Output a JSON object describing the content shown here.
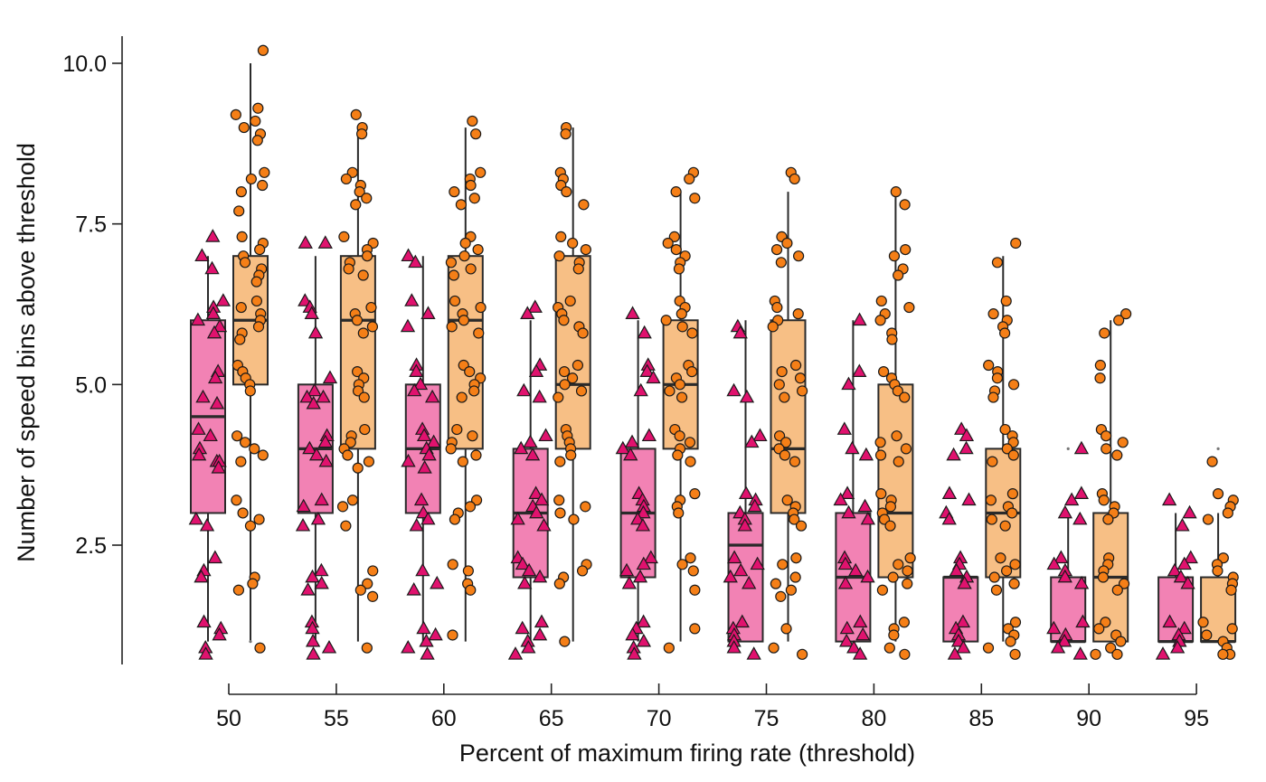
{
  "chart_data": {
    "type": "box",
    "xlabel": "Percent of maximum firing rate (threshold)",
    "ylabel": "Number of speed bins above threshold",
    "categories": [
      "50",
      "55",
      "60",
      "65",
      "70",
      "75",
      "80",
      "85",
      "90",
      "95"
    ],
    "yticks": [
      "2.5",
      "5.0",
      "7.5",
      "10.0"
    ],
    "ylim": [
      0.5,
      10.4
    ],
    "legend": "none",
    "series": [
      {
        "marker": "triangle",
        "color": "#f282b4",
        "point_color": "#e0126e",
        "boxes": [
          {
            "q1": 3,
            "median": 4.5,
            "q3": 6,
            "whisker_low": 1,
            "whisker_high": 7
          },
          {
            "q1": 3,
            "median": 4,
            "q3": 5,
            "whisker_low": 1,
            "whisker_high": 7
          },
          {
            "q1": 3,
            "median": 4,
            "q3": 5,
            "whisker_low": 1,
            "whisker_high": 7
          },
          {
            "q1": 2,
            "median": 3,
            "q3": 4,
            "whisker_low": 1,
            "whisker_high": 6
          },
          {
            "q1": 2,
            "median": 3,
            "q3": 4,
            "whisker_low": 1,
            "whisker_high": 6
          },
          {
            "q1": 1,
            "median": 2.5,
            "q3": 3,
            "whisker_low": 1,
            "whisker_high": 6
          },
          {
            "q1": 1,
            "median": 2,
            "q3": 3,
            "whisker_low": 1,
            "whisker_high": 6
          },
          {
            "q1": 1,
            "median": 2,
            "q3": 2,
            "whisker_low": 1,
            "whisker_high": 2
          },
          {
            "q1": 1,
            "median": 1,
            "q3": 2,
            "whisker_low": 1,
            "whisker_high": 3
          },
          {
            "q1": 1,
            "median": 1,
            "q3": 2,
            "whisker_low": 1,
            "whisker_high": 3
          }
        ],
        "points": [
          [
            7.3,
            7.0,
            6.8,
            6.3,
            6.2,
            6.1,
            6.0,
            5.9,
            5.8,
            5.2,
            5.1,
            4.8,
            4.7,
            4.3,
            4.2,
            4.0,
            3.9,
            3.8,
            3.8,
            3.7,
            2.9,
            2.8,
            2.3,
            2.1,
            2.0,
            1.3,
            1.2,
            1.1,
            0.9,
            0.8
          ],
          [
            7.2,
            7.2,
            6.3,
            6.2,
            6.1,
            5.8,
            5.1,
            4.9,
            4.8,
            4.8,
            4.7,
            4.2,
            4.1,
            4.0,
            3.9,
            3.8,
            3.2,
            3.1,
            2.9,
            2.8,
            2.1,
            2.0,
            1.9,
            1.8,
            1.3,
            1.2,
            1.0,
            0.9,
            0.8
          ],
          [
            7.0,
            6.9,
            6.3,
            6.1,
            5.9,
            5.3,
            5.2,
            5.0,
            4.9,
            4.8,
            4.3,
            4.2,
            4.1,
            4.0,
            3.9,
            3.8,
            3.7,
            3.2,
            3.0,
            2.9,
            2.8,
            2.1,
            1.9,
            1.8,
            1.2,
            1.1,
            1.0,
            0.9,
            0.8
          ],
          [
            6.2,
            6.1,
            5.3,
            5.2,
            4.9,
            4.8,
            4.2,
            4.1,
            4.0,
            3.9,
            3.3,
            3.2,
            3.1,
            3.0,
            2.9,
            2.8,
            2.3,
            2.2,
            2.1,
            2.0,
            1.9,
            1.3,
            1.2,
            1.1,
            1.0,
            0.9,
            0.8
          ],
          [
            6.1,
            5.8,
            5.3,
            5.2,
            5.1,
            4.9,
            4.2,
            4.1,
            4.0,
            3.9,
            3.3,
            3.2,
            3.1,
            3.0,
            2.9,
            2.8,
            2.3,
            2.2,
            2.1,
            2.0,
            1.9,
            1.3,
            1.2,
            1.1,
            1.0,
            0.9,
            0.8
          ],
          [
            5.9,
            5.8,
            4.9,
            4.8,
            4.2,
            4.1,
            3.3,
            3.2,
            3.1,
            3.0,
            2.9,
            2.8,
            2.3,
            2.2,
            2.1,
            2.0,
            1.9,
            1.3,
            1.2,
            1.1,
            1.0,
            0.9,
            0.8
          ],
          [
            6.0,
            5.2,
            5.0,
            4.3,
            4.0,
            3.9,
            3.3,
            3.2,
            3.1,
            3.0,
            2.9,
            2.3,
            2.2,
            2.1,
            2.0,
            1.9,
            1.3,
            1.2,
            1.1,
            1.0,
            0.9,
            0.8
          ],
          [
            4.3,
            4.2,
            4.0,
            3.9,
            3.3,
            3.2,
            3.0,
            2.9,
            2.3,
            2.2,
            2.1,
            2.0,
            1.9,
            1.3,
            1.2,
            1.1,
            1.0,
            0.9,
            0.8
          ],
          [
            4.0,
            3.3,
            3.2,
            3.0,
            2.9,
            2.3,
            2.2,
            2.1,
            2.0,
            1.9,
            1.3,
            1.2,
            1.1,
            1.0,
            0.9,
            0.8
          ],
          [
            3.2,
            3.0,
            2.8,
            2.3,
            2.2,
            2.1,
            2.0,
            1.9,
            1.3,
            1.2,
            1.1,
            1.0,
            0.9,
            0.8
          ]
        ]
      },
      {
        "marker": "circle",
        "color": "#f7bf85",
        "point_color": "#f57f17",
        "boxes": [
          {
            "q1": 5,
            "median": 6,
            "q3": 7,
            "whisker_low": 1,
            "whisker_high": 10
          },
          {
            "q1": 4,
            "median": 6,
            "q3": 7,
            "whisker_low": 1,
            "whisker_high": 9
          },
          {
            "q1": 4,
            "median": 6,
            "q3": 7,
            "whisker_low": 1,
            "whisker_high": 9
          },
          {
            "q1": 4,
            "median": 5,
            "q3": 7,
            "whisker_low": 1,
            "whisker_high": 9
          },
          {
            "q1": 4,
            "median": 5,
            "q3": 6,
            "whisker_low": 1,
            "whisker_high": 8
          },
          {
            "q1": 3,
            "median": 4,
            "q3": 6,
            "whisker_low": 1,
            "whisker_high": 8
          },
          {
            "q1": 2,
            "median": 3,
            "q3": 5,
            "whisker_low": 1,
            "whisker_high": 8
          },
          {
            "q1": 2,
            "median": 3,
            "q3": 4,
            "whisker_low": 1,
            "whisker_high": 7
          },
          {
            "q1": 1,
            "median": 2,
            "q3": 3,
            "whisker_low": 1,
            "whisker_high": 6
          },
          {
            "q1": 1,
            "median": 1,
            "q3": 2,
            "whisker_low": 1,
            "whisker_high": 3
          }
        ],
        "points": [
          [
            10.2,
            9.3,
            9.2,
            9.1,
            9.0,
            8.9,
            8.8,
            8.3,
            8.2,
            8.1,
            8.0,
            7.7,
            7.3,
            7.2,
            7.1,
            7.0,
            6.9,
            6.8,
            6.7,
            6.6,
            6.3,
            6.2,
            6.1,
            6.0,
            5.9,
            5.8,
            5.7,
            5.3,
            5.2,
            5.1,
            5.0,
            4.9,
            4.2,
            4.1,
            4.0,
            3.9,
            3.8,
            3.2,
            3.0,
            2.9,
            2.8,
            2.0,
            1.9,
            1.8,
            0.9
          ],
          [
            9.2,
            9.0,
            8.9,
            8.3,
            8.2,
            8.1,
            8.0,
            7.9,
            7.8,
            7.3,
            7.2,
            7.1,
            7.0,
            6.9,
            6.8,
            6.7,
            6.2,
            6.1,
            6.0,
            5.9,
            5.8,
            5.2,
            5.1,
            5.0,
            4.9,
            4.8,
            4.3,
            4.2,
            4.1,
            4.0,
            3.9,
            3.8,
            3.7,
            3.2,
            3.1,
            2.8,
            2.1,
            1.9,
            1.8,
            1.7,
            0.9
          ],
          [
            9.1,
            8.9,
            8.3,
            8.2,
            8.1,
            8.0,
            7.9,
            7.8,
            7.3,
            7.2,
            7.1,
            7.0,
            6.9,
            6.8,
            6.7,
            6.3,
            6.2,
            6.1,
            6.0,
            5.9,
            5.8,
            5.3,
            5.2,
            5.1,
            5.0,
            4.9,
            4.8,
            4.3,
            4.2,
            4.1,
            4.0,
            3.9,
            3.8,
            3.2,
            3.1,
            3.0,
            2.9,
            2.2,
            2.1,
            1.9,
            1.8,
            1.1
          ],
          [
            9.0,
            8.9,
            8.3,
            8.2,
            8.1,
            8.0,
            7.8,
            7.3,
            7.2,
            7.1,
            7.0,
            6.9,
            6.8,
            6.3,
            6.2,
            6.1,
            6.0,
            5.9,
            5.8,
            5.3,
            5.2,
            5.1,
            5.0,
            4.9,
            4.8,
            4.3,
            4.2,
            4.1,
            4.0,
            3.9,
            3.8,
            3.2,
            3.1,
            3.0,
            2.9,
            2.2,
            2.1,
            2.0,
            1.9,
            1.0
          ],
          [
            8.3,
            8.2,
            8.0,
            7.9,
            7.3,
            7.2,
            7.1,
            7.0,
            6.9,
            6.8,
            6.3,
            6.2,
            6.1,
            6.0,
            5.9,
            5.8,
            5.3,
            5.2,
            5.1,
            5.0,
            4.9,
            4.8,
            4.3,
            4.2,
            4.1,
            4.0,
            3.9,
            3.8,
            3.3,
            3.2,
            3.1,
            3.0,
            2.3,
            2.2,
            2.1,
            1.8,
            1.2,
            0.9
          ],
          [
            8.3,
            8.2,
            7.3,
            7.2,
            7.1,
            7.0,
            6.9,
            6.3,
            6.2,
            6.1,
            6.0,
            5.9,
            5.3,
            5.2,
            5.1,
            5.0,
            4.9,
            4.8,
            4.2,
            4.1,
            4.0,
            3.9,
            3.8,
            3.2,
            3.1,
            3.0,
            2.9,
            2.8,
            2.3,
            2.2,
            2.0,
            1.9,
            1.8,
            1.7,
            1.2,
            0.9,
            0.8
          ],
          [
            8.0,
            7.8,
            7.1,
            7.0,
            6.8,
            6.7,
            6.3,
            6.2,
            6.1,
            6.0,
            5.8,
            5.7,
            5.2,
            5.1,
            5.0,
            4.9,
            4.8,
            4.2,
            4.1,
            4.0,
            3.9,
            3.8,
            3.3,
            3.2,
            3.1,
            3.0,
            2.9,
            2.8,
            2.3,
            2.2,
            2.1,
            2.0,
            1.9,
            1.8,
            1.3,
            1.2,
            1.1,
            0.9,
            0.8
          ],
          [
            7.2,
            6.9,
            6.3,
            6.1,
            6.0,
            5.9,
            5.8,
            5.3,
            5.2,
            5.1,
            5.0,
            4.9,
            4.8,
            4.3,
            4.2,
            4.1,
            4.0,
            3.9,
            3.8,
            3.3,
            3.2,
            3.1,
            3.0,
            2.9,
            2.8,
            2.3,
            2.2,
            2.1,
            2.0,
            1.9,
            1.8,
            1.3,
            1.2,
            1.1,
            1.0,
            0.9,
            0.8
          ],
          [
            6.1,
            6.0,
            5.8,
            5.3,
            5.1,
            4.3,
            4.2,
            4.1,
            4.0,
            3.9,
            3.3,
            3.2,
            3.1,
            3.0,
            2.9,
            2.3,
            2.2,
            2.1,
            2.0,
            1.9,
            1.8,
            1.3,
            1.2,
            1.1,
            1.0,
            0.9,
            0.8,
            0.8
          ],
          [
            3.8,
            3.3,
            3.2,
            3.1,
            3.0,
            2.9,
            2.3,
            2.2,
            2.1,
            2.0,
            1.9,
            1.8,
            1.3,
            1.2,
            1.1,
            1.0,
            0.9,
            0.8,
            0.8
          ]
        ]
      }
    ],
    "outliers": [
      {
        "category_index": 0,
        "series": 1,
        "value": 1
      },
      {
        "category_index": 8,
        "series": 0,
        "value": 4
      },
      {
        "category_index": 9,
        "series": 1,
        "value": 4
      }
    ]
  }
}
